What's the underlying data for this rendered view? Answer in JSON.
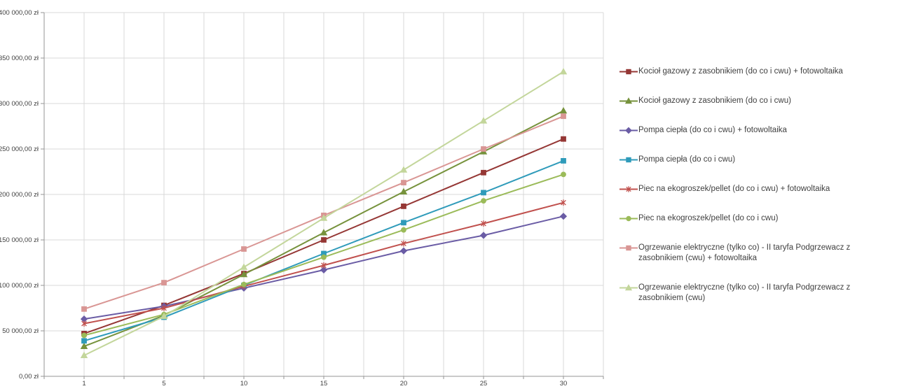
{
  "chart_data": {
    "type": "line",
    "title": "",
    "xlabel": "",
    "ylabel": "",
    "x_categories": [
      "1",
      "5",
      "10",
      "15",
      "20",
      "25",
      "30"
    ],
    "ylim": [
      0,
      400000
    ],
    "y_tick_step": 50000,
    "y_tick_labels": [
      "0,00 zł",
      "50 000,00 zł",
      "100 000,00 zł",
      "150 000,00 zł",
      "200 000,00 zł",
      "250 000,00 zł",
      "300 000,00 zł",
      "350 000,00 zł",
      "400 000,00 zł"
    ],
    "grid": true,
    "legend_position": "right",
    "currency": "zł",
    "series": [
      {
        "name": "Kocioł gazowy z zasobnikiem (do co i cwu) + fotowoltaika",
        "color": "#953735",
        "marker": "square",
        "values": [
          47000,
          78000,
          113000,
          150000,
          187000,
          224000,
          261000
        ]
      },
      {
        "name": "Kocioł gazowy z zasobnikiem (do co i cwu)",
        "color": "#76923C",
        "marker": "triangle",
        "values": [
          33000,
          67000,
          112000,
          158000,
          203000,
          247000,
          292000
        ]
      },
      {
        "name": "Pompa ciepła (do co i cwu) + fotowoltaika",
        "color": "#6A5CA5",
        "marker": "diamond",
        "values": [
          63000,
          77000,
          97000,
          117000,
          138000,
          155000,
          176000
        ]
      },
      {
        "name": "Pompa ciepła (do co i cwu)",
        "color": "#2F9BBA",
        "marker": "square",
        "values": [
          39000,
          65000,
          100000,
          135000,
          169000,
          202000,
          237000
        ]
      },
      {
        "name": "Piec na ekogroszek/pellet (do co i cwu) + fotowoltaika",
        "color": "#C0504D",
        "marker": "asterisk",
        "values": [
          58000,
          75000,
          99000,
          122000,
          146000,
          168000,
          191000
        ]
      },
      {
        "name": "Piec na ekogroszek/pellet (do co i cwu)",
        "color": "#9BBB59",
        "marker": "circle",
        "values": [
          45000,
          68000,
          101000,
          131000,
          161000,
          193000,
          222000
        ]
      },
      {
        "name": "Ogrzewanie elektryczne (tylko co) - II taryfa Podgrzewacz z zasobnikiem (cwu) + fotowoltaika",
        "color": "#D99694",
        "marker": "square",
        "values": [
          74000,
          103000,
          140000,
          177000,
          213000,
          250000,
          286000
        ]
      },
      {
        "name": "Ogrzewanie elektryczne (tylko co) - II taryfa Podgrzewacz z zasobnikiem (cwu)",
        "color": "#C3D69B",
        "marker": "triangle",
        "values": [
          23000,
          66000,
          120000,
          174000,
          227000,
          281000,
          335000
        ]
      }
    ]
  },
  "colors": {
    "gridline": "#D9D9D9",
    "axis": "#969696",
    "tick_text": "#404040",
    "legend_text": "#3F3F3F",
    "background": "#FFFFFF"
  }
}
